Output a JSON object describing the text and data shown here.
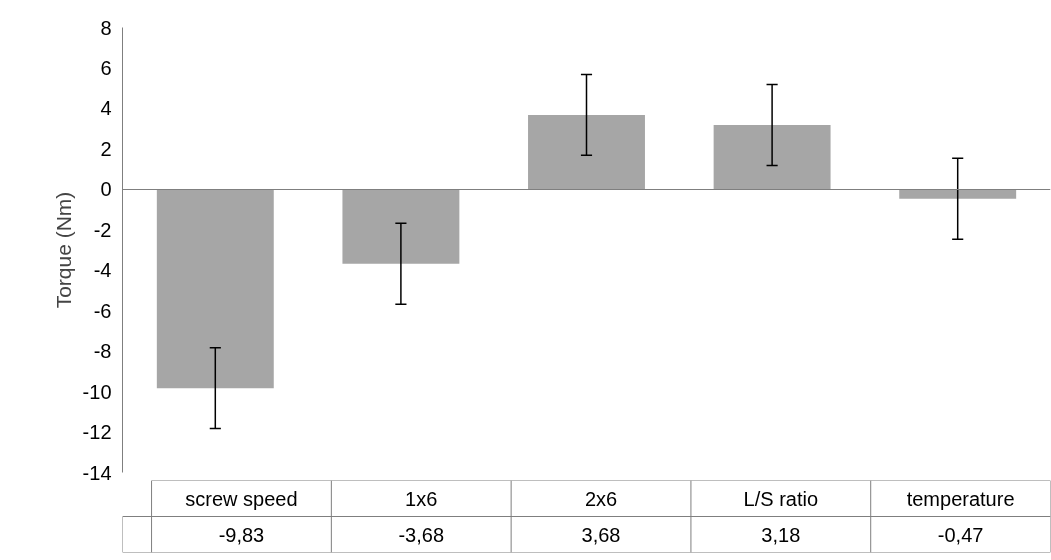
{
  "chart_data": {
    "type": "bar",
    "ylabel": "Torque (Nm)",
    "categories": [
      "screw speed",
      "1x6",
      "2x6",
      "L/S ratio",
      "temperature"
    ],
    "series": [
      {
        "color": "#a6a6a6",
        "values": [
          -9.83,
          -3.68,
          3.68,
          3.18,
          -0.47
        ],
        "errors": [
          2,
          2,
          2,
          2,
          2
        ],
        "value_labels": [
          "-9,83",
          "-3,68",
          "3,68",
          "3,18",
          "-0,47"
        ]
      }
    ],
    "ylim": [
      -14,
      8
    ],
    "yticks": [
      -14,
      -12,
      -10,
      -8,
      -6,
      -4,
      -2,
      0,
      2,
      4,
      6,
      8
    ],
    "legend": false
  }
}
